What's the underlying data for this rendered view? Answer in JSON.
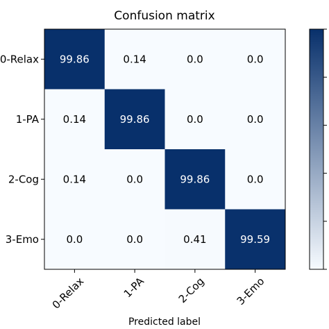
{
  "chart_data": {
    "type": "heatmap",
    "title": "Confusion matrix",
    "xlabel": "Predicted label",
    "ylabel": "",
    "row_labels": [
      "0-Relax",
      "1-PA",
      "2-Cog",
      "3-Emo"
    ],
    "col_labels": [
      "0-Relax",
      "1-PA",
      "2-Cog",
      "3-Emo"
    ],
    "values": [
      [
        99.86,
        0.14,
        0.0,
        0.0
      ],
      [
        0.14,
        99.86,
        0.0,
        0.0
      ],
      [
        0.14,
        0.0,
        99.86,
        0.0
      ],
      [
        0.0,
        0.0,
        0.41,
        99.59
      ]
    ],
    "value_labels": [
      [
        "99.86",
        "0.14",
        "0.0",
        "0.0"
      ],
      [
        "0.14",
        "99.86",
        "0.0",
        "0.0"
      ],
      [
        "0.14",
        "0.0",
        "99.86",
        "0.0"
      ],
      [
        "0.0",
        "0.0",
        "0.41",
        "99.59"
      ]
    ],
    "colormap": "Blues",
    "vmin": 0,
    "vmax": 100,
    "colors": {
      "low": "#f7fbff",
      "high": "#08306b",
      "text_dark": "#000000",
      "text_light": "#ffffff"
    },
    "grid": false,
    "colorbar": true
  }
}
